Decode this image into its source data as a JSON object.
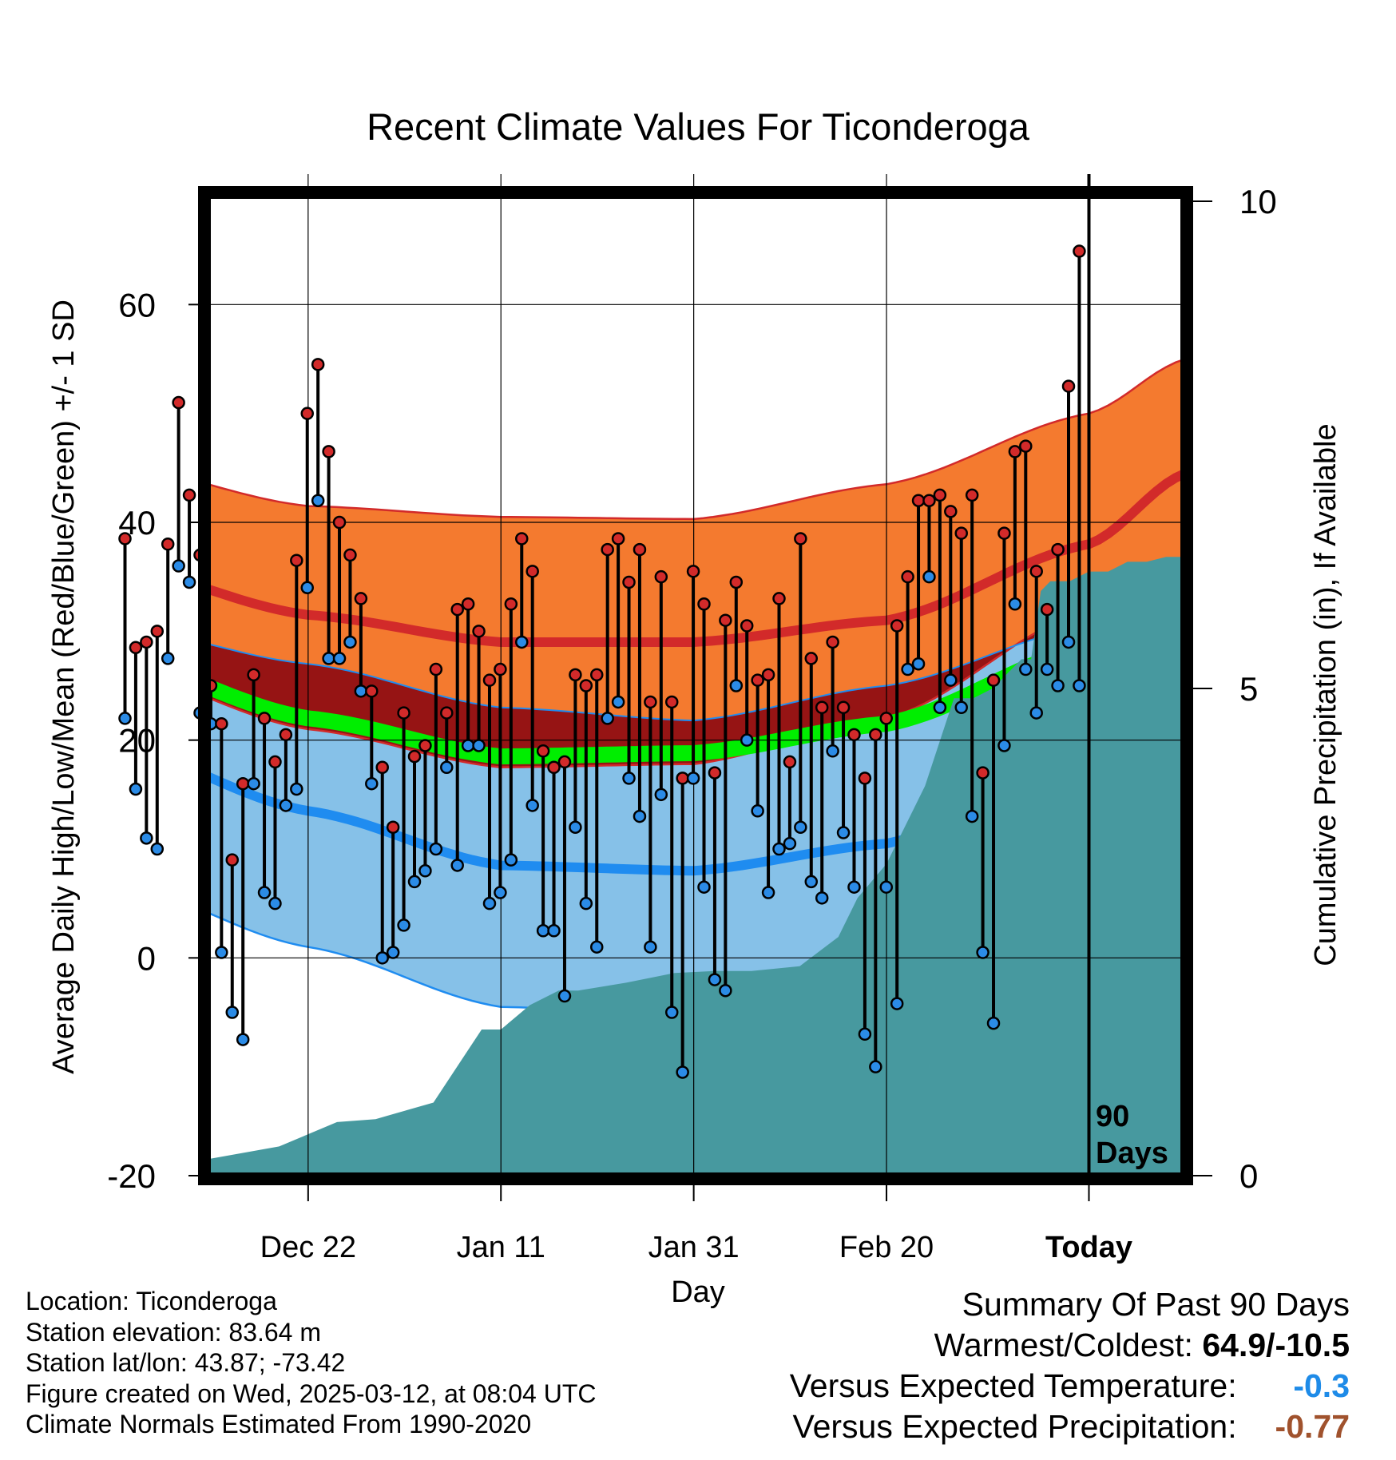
{
  "chart_data": {
    "type": "line",
    "title": "Recent Climate Values For Ticonderoga",
    "xlabel": "Day",
    "ylabel": "Average Daily High/Low/Mean (Red/Blue/Green) +/- 1 SD",
    "y2label": "Cumulative Precipitation (in), If Available",
    "ylim": [
      -20,
      70
    ],
    "y2lim": [
      0,
      30
    ],
    "yticks": [
      "-20",
      "0",
      "20",
      "40",
      "60"
    ],
    "y2ticks": [
      "0",
      "5",
      "10",
      "15"
    ],
    "xticks": [
      "Dec 22",
      "Jan 11",
      "Jan 31",
      "Feb 20",
      "Today"
    ],
    "today_marker": "90\nDays",
    "grid": true,
    "colors": {
      "high_band": "#f47a2f",
      "high_mean": "#d22a2a",
      "low_band": "#86c1e8",
      "low_mean": "#1f8cf0",
      "overlap": "#961414",
      "avg_mean": "#00ee00",
      "precip": "#47999f",
      "high_dot": "#d22a2a",
      "low_dot": "#2b8be6"
    },
    "normals": {
      "x": [
        -101,
        -81,
        -61,
        -41,
        -21,
        0,
        10
      ],
      "high_mean": [
        36,
        31.5,
        29,
        29,
        31,
        38,
        44.5
      ],
      "high_sd_upper": [
        45.3,
        41.5,
        40.5,
        40.3,
        43.5,
        50,
        55
      ],
      "high_sd_lower": [
        26.5,
        21,
        17.5,
        17.8,
        22,
        32,
        36.5
      ],
      "low_mean": [
        19.5,
        13.5,
        8.5,
        8,
        10.5,
        17.8,
        23.5
      ],
      "low_sd_upper": [
        30.5,
        27,
        23,
        21.8,
        25,
        30.5,
        33
      ],
      "low_sd_lower": [
        7,
        1,
        -4.5,
        -5.2,
        -3,
        6,
        13.2
      ],
      "avg_mean": [
        27.5,
        22,
        18.5,
        18.8,
        21.5,
        28.5,
        34
      ]
    },
    "daily": {
      "high": [
        38.5,
        28.5,
        29,
        30,
        38,
        51,
        42.5,
        37,
        25,
        21.5,
        9,
        16,
        26,
        22,
        18,
        20.5,
        36.5,
        50,
        54.5,
        46.5,
        40,
        37,
        33,
        24.5,
        17.5,
        12,
        22.5,
        18.5,
        19.5,
        26.5,
        22.5,
        32,
        32.5,
        30,
        25.5,
        26.5,
        32.5,
        38.5,
        35.5,
        19,
        17.5,
        18,
        26,
        25,
        26,
        37.5,
        38.5,
        34.5,
        37.5,
        23.5,
        35,
        23.5,
        16.5,
        35.5,
        32.5,
        17,
        31,
        34.5,
        30.5,
        25.5,
        26,
        33,
        18,
        38.5,
        27.5,
        23,
        29,
        23,
        20.5,
        16.5,
        20.5,
        22,
        30.5,
        35,
        42,
        42,
        42.5,
        41,
        39,
        42.5,
        17,
        25.5,
        39,
        46.5,
        47,
        35.5,
        32,
        37.5,
        52.5,
        64.9
      ],
      "low": [
        22,
        15.5,
        11,
        10,
        27.5,
        36,
        34.5,
        22.5,
        21.5,
        0.5,
        -5,
        -7.5,
        16,
        6,
        5,
        14,
        15.5,
        34,
        42,
        27.5,
        27.5,
        29,
        24.5,
        16,
        0,
        0.5,
        3,
        7,
        8,
        10,
        17.5,
        8.5,
        19.5,
        19.5,
        5,
        6,
        9,
        29,
        14,
        2.5,
        2.5,
        -3.5,
        12,
        5,
        1,
        22,
        23.5,
        16.5,
        13,
        1,
        15,
        -5,
        -10.5,
        16.5,
        6.5,
        -2,
        -3,
        25,
        20,
        13.5,
        6,
        10,
        10.5,
        12,
        7,
        5.5,
        19,
        11.5,
        6.5,
        -7,
        -10,
        6.5,
        -4.2,
        26.5,
        27,
        35,
        23,
        25.5,
        23,
        13,
        0.5,
        -6,
        19.5,
        32.5,
        26.5,
        22.5,
        26.5,
        25,
        29,
        25
      ]
    },
    "precip": {
      "x": [
        -101,
        -84,
        -78,
        -74,
        -68,
        -65,
        -63,
        -61,
        -58,
        -55,
        -53,
        -48,
        -43,
        -39,
        -35,
        -30,
        -26,
        -24,
        -21,
        -19,
        -17,
        -14,
        -12,
        -10,
        -8,
        -7,
        -6,
        -5,
        -4,
        -2,
        0,
        2,
        4,
        6,
        8,
        10
      ],
      "y": [
        0,
        0.3,
        0.55,
        0.58,
        0.75,
        1.2,
        1.5,
        1.5,
        1.75,
        1.9,
        1.9,
        1.98,
        2.08,
        2.1,
        2.1,
        2.15,
        2.45,
        2.85,
        3.2,
        3.6,
        4.0,
        4.9,
        4.9,
        5.0,
        5.2,
        5.3,
        5.3,
        6.0,
        6.1,
        6.1,
        6.2,
        6.2,
        6.3,
        6.3,
        6.35,
        6.35
      ]
    }
  },
  "footer": {
    "location": "Location: Ticonderoga",
    "elevation": "Station elevation: 83.64 m",
    "latlon": "Station lat/lon: 43.87; -73.42",
    "created": "Figure created on Wed, 2025-03-12, at 08:04 UTC",
    "normals": "Climate Normals Estimated From 1990-2020"
  },
  "summary": {
    "heading": "Summary Of Past 90 Days",
    "warm_cold_label": "Warmest/Coldest:",
    "warm_cold_value": "64.9/-10.5",
    "temp_label": "Versus Expected Temperature:",
    "temp_value": "-0.3",
    "precip_label": "Versus Expected Precipitation:",
    "precip_value": "-0.77"
  }
}
